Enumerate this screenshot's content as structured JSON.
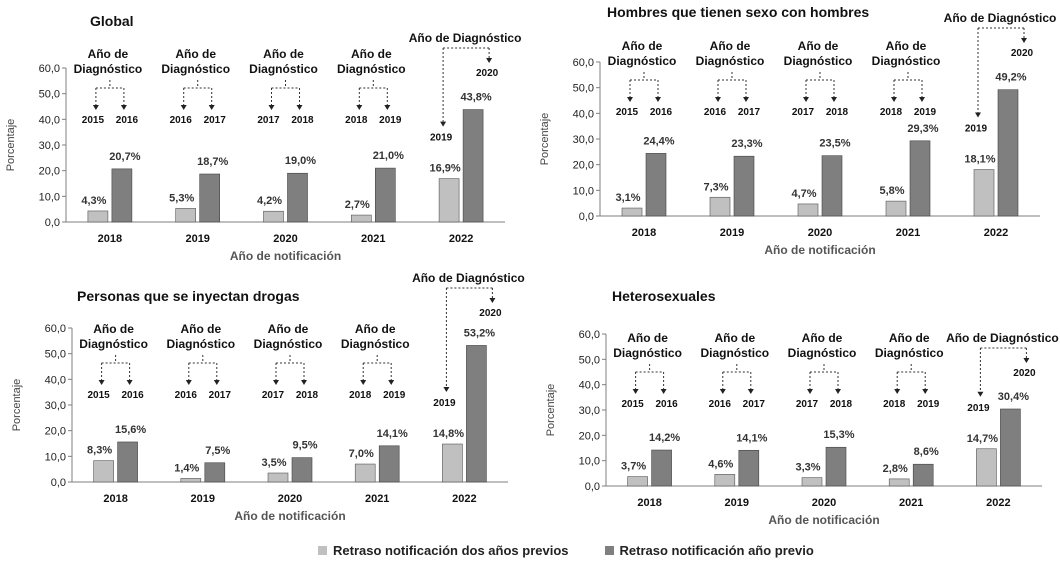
{
  "legend": {
    "series1": "Retraso notificación dos años previos",
    "series2": "Retraso notificación año previo",
    "color1": "#c0c0c0",
    "color2": "#7f7f7f"
  },
  "chart_data": [
    {
      "type": "bar",
      "title": "Global",
      "xlabel": "Año de notificación",
      "ylabel": "Porcentaje",
      "ylim": [
        0,
        60
      ],
      "yticks": [
        "0,0",
        "10,0",
        "20,0",
        "30,0",
        "40,0",
        "50,0",
        "60,0"
      ],
      "categories": [
        "2018",
        "2019",
        "2020",
        "2021",
        "2022"
      ],
      "series": [
        {
          "name": "Retraso notificación dos años previos",
          "values": [
            4.3,
            5.3,
            4.2,
            2.7,
            16.9
          ],
          "labels": [
            "4,3%",
            "5,3%",
            "4,2%",
            "2,7%",
            "16,9%"
          ]
        },
        {
          "name": "Retraso notificación año previo",
          "values": [
            20.7,
            18.7,
            19.0,
            21.0,
            43.8
          ],
          "labels": [
            "20,7%",
            "18,7%",
            "19,0%",
            "21,0%",
            "43,8%"
          ]
        }
      ],
      "annotations": [
        {
          "line1": "Año de",
          "line2": "Diagnóstico",
          "years": [
            "2015",
            "2016"
          ]
        },
        {
          "line1": "Año de",
          "line2": "Diagnóstico",
          "years": [
            "2016",
            "2017"
          ]
        },
        {
          "line1": "Año de",
          "line2": "Diagnóstico",
          "years": [
            "2017",
            "2018"
          ]
        },
        {
          "line1": "Año de",
          "line2": "Diagnóstico",
          "years": [
            "2018",
            "2019"
          ]
        },
        {
          "line1": "Año de Diagnóstico",
          "line2": "",
          "years": [
            "2019",
            "2020"
          ]
        }
      ]
    },
    {
      "type": "bar",
      "title": "Hombres que tienen sexo con hombres",
      "xlabel": "Año de notificación",
      "ylabel": "Porcentaje",
      "ylim": [
        0,
        60
      ],
      "yticks": [
        "0,0",
        "10,0",
        "20,0",
        "30,0",
        "40,0",
        "50,0",
        "60,0"
      ],
      "categories": [
        "2018",
        "2019",
        "2020",
        "2021",
        "2022"
      ],
      "series": [
        {
          "name": "Retraso notificación dos años previos",
          "values": [
            3.1,
            7.3,
            4.7,
            5.8,
            18.1
          ],
          "labels": [
            "3,1%",
            "7,3%",
            "4,7%",
            "5,8%",
            "18,1%"
          ]
        },
        {
          "name": "Retraso notificación año previo",
          "values": [
            24.4,
            23.3,
            23.5,
            29.3,
            49.2
          ],
          "labels": [
            "24,4%",
            "23,3%",
            "23,5%",
            "29,3%",
            "49,2%"
          ]
        }
      ],
      "annotations": [
        {
          "line1": "Año de",
          "line2": "Diagnóstico",
          "years": [
            "2015",
            "2016"
          ]
        },
        {
          "line1": "Año de",
          "line2": "Diagnóstico",
          "years": [
            "2016",
            "2017"
          ]
        },
        {
          "line1": "Año de",
          "line2": "Diagnóstico",
          "years": [
            "2017",
            "2018"
          ]
        },
        {
          "line1": "Año de",
          "line2": "Diagnóstico",
          "years": [
            "2018",
            "2019"
          ]
        },
        {
          "line1": "Año de Diagnóstico",
          "line2": "",
          "years": [
            "2019",
            "2020"
          ]
        }
      ]
    },
    {
      "type": "bar",
      "title": "Personas que se inyectan drogas",
      "xlabel": "Año de notificación",
      "ylabel": "Porcentaje",
      "ylim": [
        0,
        60
      ],
      "yticks": [
        "0,0",
        "10,0",
        "20,0",
        "30,0",
        "40,0",
        "50,0",
        "60,0"
      ],
      "categories": [
        "2018",
        "2019",
        "2020",
        "2021",
        "2022"
      ],
      "series": [
        {
          "name": "Retraso notificación dos años previos",
          "values": [
            8.3,
            1.4,
            3.5,
            7.0,
            14.8
          ],
          "labels": [
            "8,3%",
            "1,4%",
            "3,5%",
            "7,0%",
            "14,8%"
          ]
        },
        {
          "name": "Retraso notificación año previo",
          "values": [
            15.6,
            7.5,
            9.5,
            14.1,
            53.2
          ],
          "labels": [
            "15,6%",
            "7,5%",
            "9,5%",
            "14,1%",
            "53,2%"
          ]
        }
      ],
      "annotations": [
        {
          "line1": "Año de",
          "line2": "Diagnóstico",
          "years": [
            "2015",
            "2016"
          ]
        },
        {
          "line1": "Año de",
          "line2": "Diagnóstico",
          "years": [
            "2016",
            "2017"
          ]
        },
        {
          "line1": "Año de",
          "line2": "Diagnóstico",
          "years": [
            "2017",
            "2018"
          ]
        },
        {
          "line1": "Año de",
          "line2": "Diagnóstico",
          "years": [
            "2018",
            "2019"
          ]
        },
        {
          "line1": "Año de Diagnóstico",
          "line2": "",
          "years": [
            "2019",
            "2020"
          ]
        }
      ]
    },
    {
      "type": "bar",
      "title": "Heterosexuales",
      "xlabel": "Año de notificación",
      "ylabel": "Porcentaje",
      "ylim": [
        0,
        60
      ],
      "yticks": [
        "0,0",
        "10,0",
        "20,0",
        "30,0",
        "40,0",
        "50,0",
        "60,0"
      ],
      "categories": [
        "2018",
        "2019",
        "2020",
        "2021",
        "2022"
      ],
      "series": [
        {
          "name": "Retraso notificación dos años previos",
          "values": [
            3.7,
            4.6,
            3.3,
            2.8,
            14.7
          ],
          "labels": [
            "3,7%",
            "4,6%",
            "3,3%",
            "2,8%",
            "14,7%"
          ]
        },
        {
          "name": "Retraso notificación año previo",
          "values": [
            14.2,
            14.1,
            15.3,
            8.6,
            30.4
          ],
          "labels": [
            "14,2%",
            "14,1%",
            "15,3%",
            "8,6%",
            "30,4%"
          ]
        }
      ],
      "annotations": [
        {
          "line1": "Año de",
          "line2": "Diagnóstico",
          "years": [
            "2015",
            "2016"
          ]
        },
        {
          "line1": "Año de",
          "line2": "Diagnóstico",
          "years": [
            "2016",
            "2017"
          ]
        },
        {
          "line1": "Año de",
          "line2": "Diagnóstico",
          "years": [
            "2017",
            "2018"
          ]
        },
        {
          "line1": "Año de",
          "line2": "Diagnóstico",
          "years": [
            "2018",
            "2019"
          ]
        },
        {
          "line1": "Año de Diagnóstico",
          "line2": "",
          "years": [
            "2019",
            "2020"
          ]
        }
      ]
    }
  ]
}
